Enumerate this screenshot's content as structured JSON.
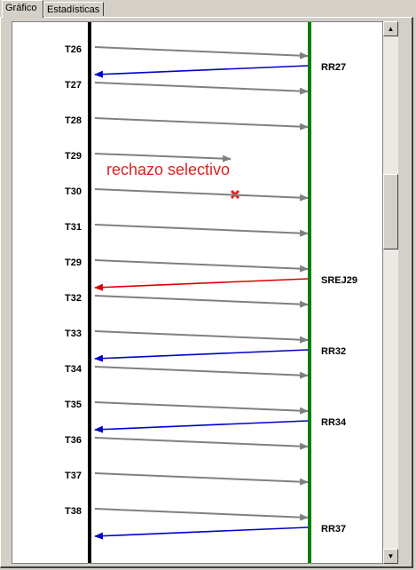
{
  "tabs": [
    {
      "label": "Gráfico"
    },
    {
      "label": "Estadísticas"
    }
  ],
  "diagram": {
    "annotation": "rechazo selectivo",
    "colors": {
      "sender_line": "#000000",
      "receiver_line": "#008000",
      "frame_arrow": "#808080",
      "ack_arrow": "#0000cc",
      "reject_arrow": "#dd0000",
      "annotation": "#e02020",
      "lost_mark": "#e02020"
    },
    "frames": [
      {
        "label": "T26",
        "lost": false
      },
      {
        "label": "T27",
        "lost": false
      },
      {
        "label": "T28",
        "lost": false
      },
      {
        "label": "T29",
        "lost": true
      },
      {
        "label": "T30",
        "lost": false
      },
      {
        "label": "T31",
        "lost": false
      },
      {
        "label": "T29",
        "lost": false
      },
      {
        "label": "T32",
        "lost": false
      },
      {
        "label": "T33",
        "lost": false
      },
      {
        "label": "T34",
        "lost": false
      },
      {
        "label": "T35",
        "lost": false
      },
      {
        "label": "T36",
        "lost": false
      },
      {
        "label": "T37",
        "lost": false
      },
      {
        "label": "T38",
        "lost": false
      }
    ],
    "responses": [
      {
        "label": "RR27",
        "type": "ack"
      },
      {
        "label": "SREJ29",
        "type": "reject"
      },
      {
        "label": "RR32",
        "type": "ack"
      },
      {
        "label": "RR34",
        "type": "ack"
      },
      {
        "label": "RR37",
        "type": "ack"
      }
    ]
  },
  "scrollbar": {
    "up_icon": "arrow-up-icon",
    "down_icon": "arrow-down-icon"
  }
}
